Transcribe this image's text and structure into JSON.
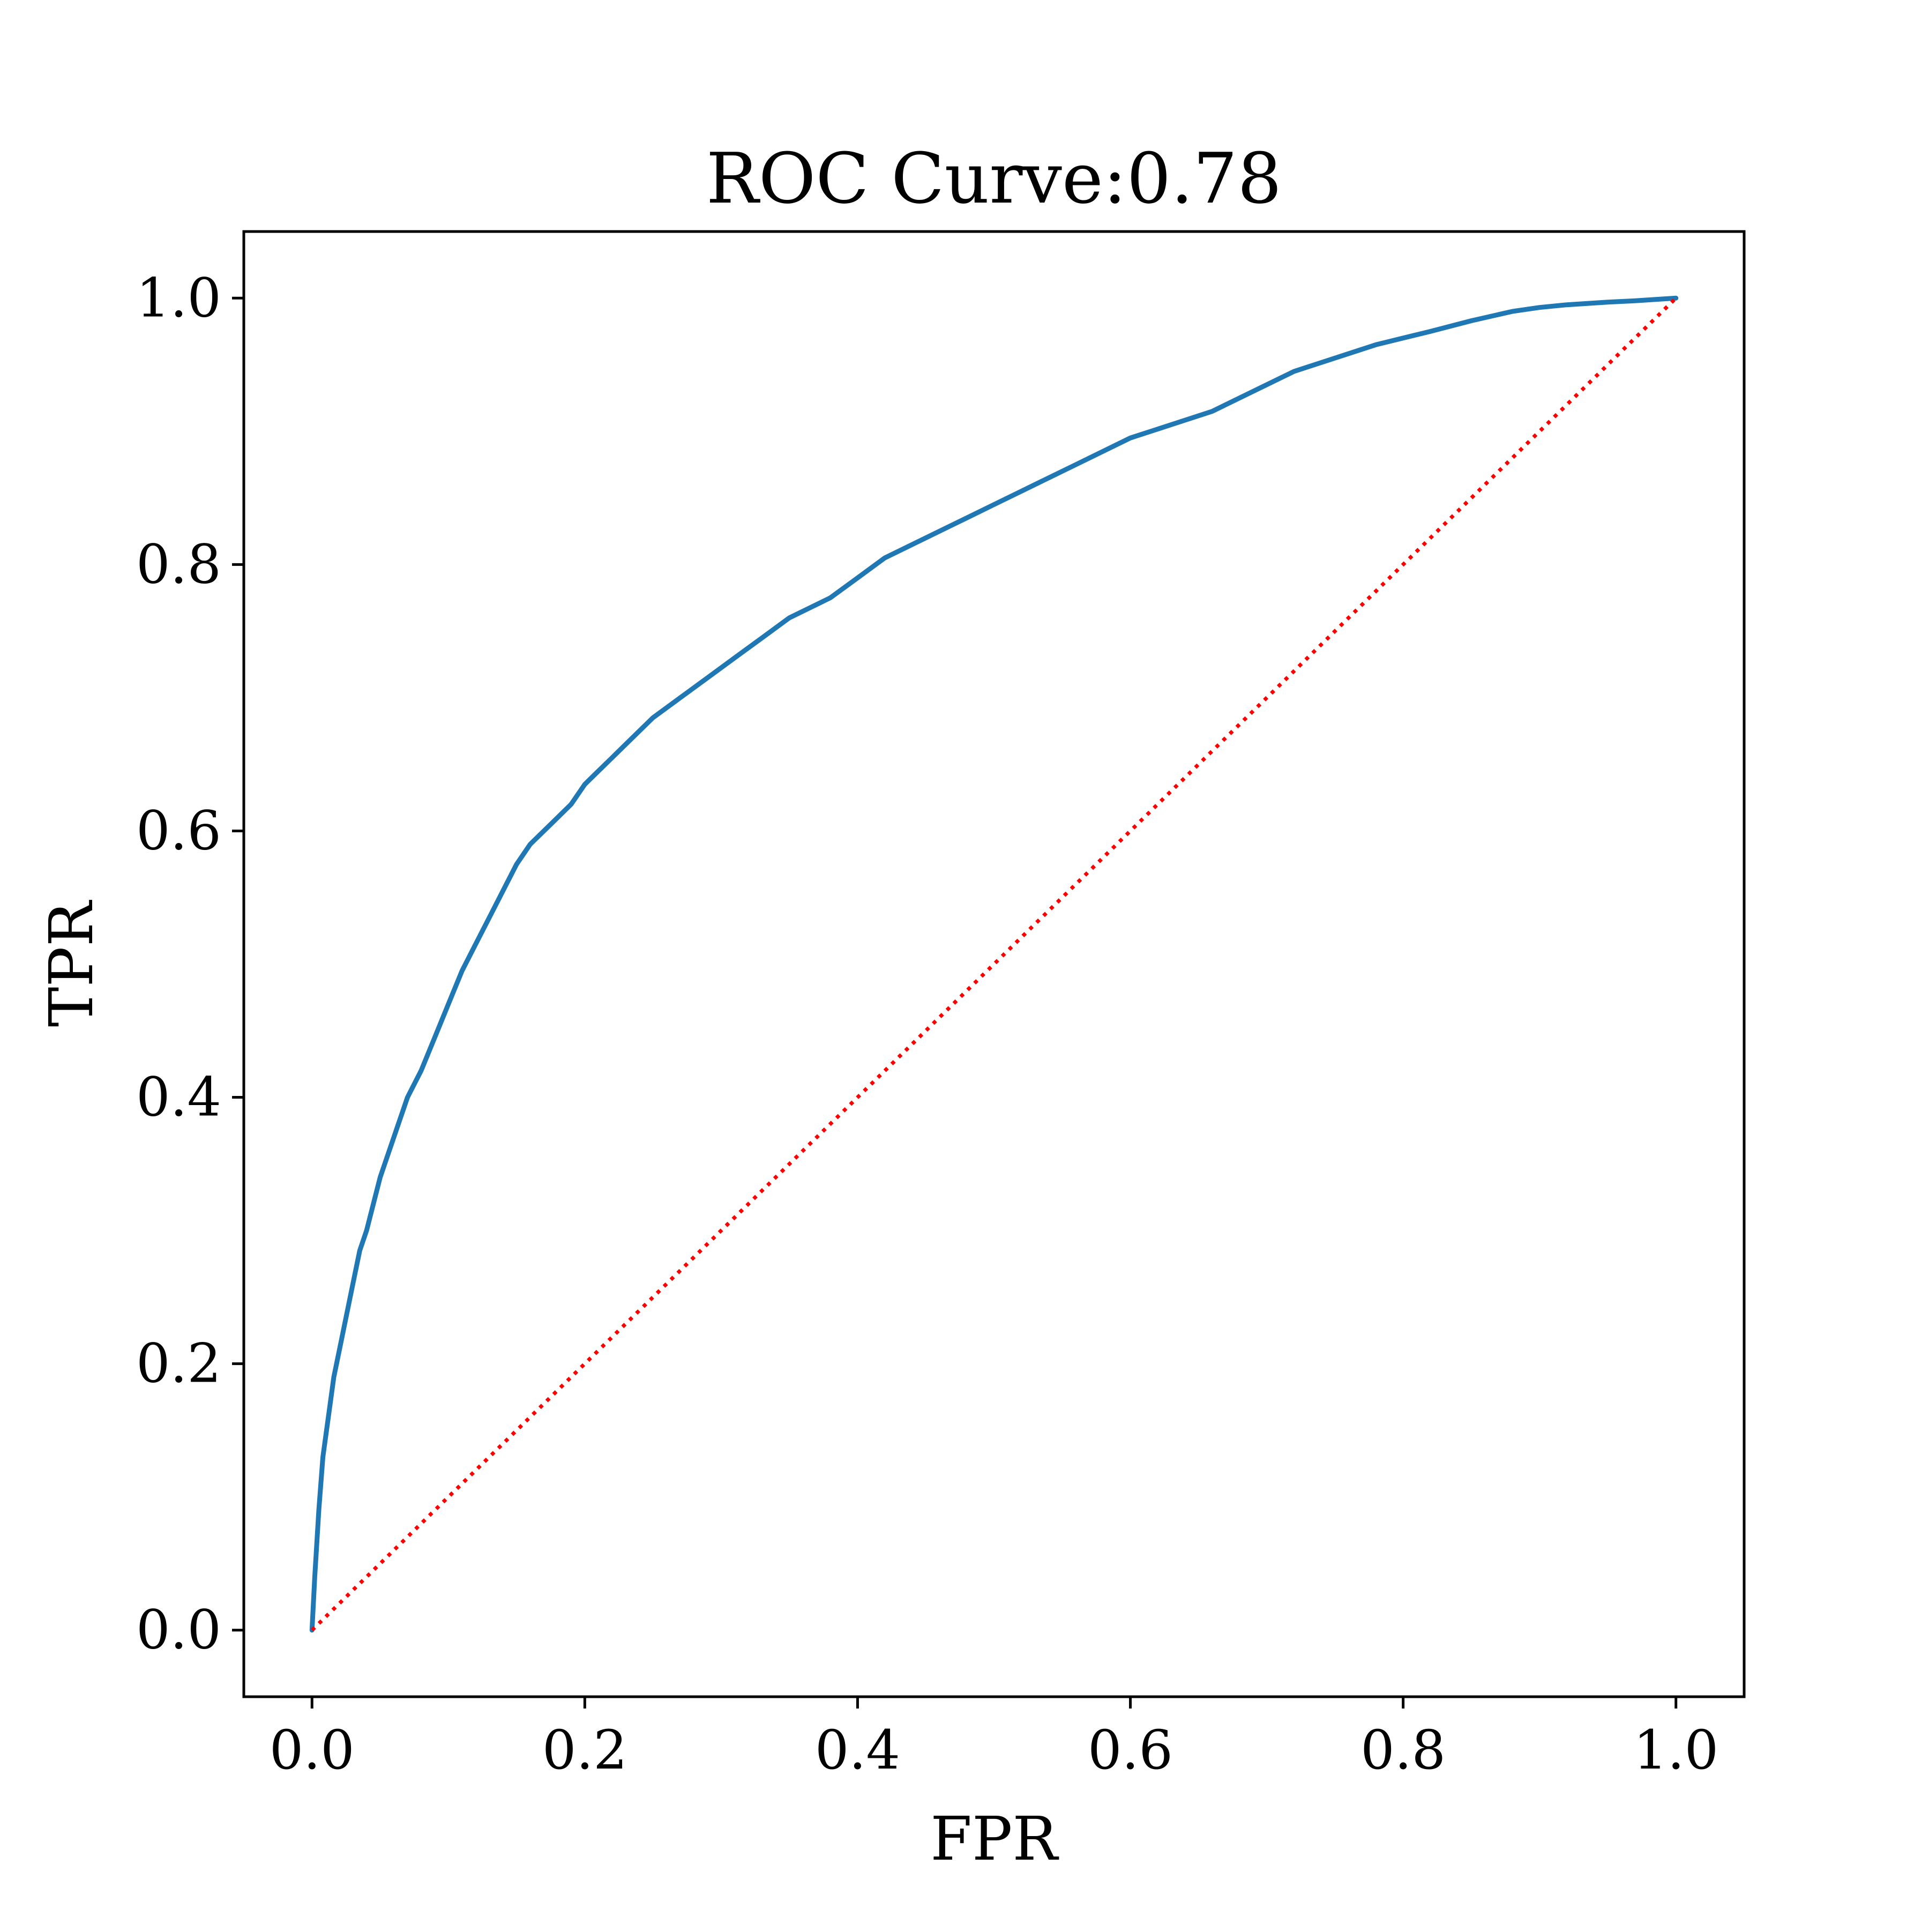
{
  "chart_data": {
    "type": "line",
    "title": "ROC Curve:0.78",
    "xlabel": "FPR",
    "ylabel": "TPR",
    "xlim": [
      -0.05,
      1.05
    ],
    "ylim": [
      -0.05,
      1.05
    ],
    "xticks": [
      "0.0",
      "0.2",
      "0.4",
      "0.6",
      "0.8",
      "1.0"
    ],
    "yticks": [
      "0.0",
      "0.2",
      "0.4",
      "0.6",
      "0.8",
      "1.0"
    ],
    "grid": false,
    "legend": "none",
    "series": [
      {
        "style": "solid",
        "color": "#1f77b4",
        "x": [
          0.0,
          0.002,
          0.005,
          0.008,
          0.012,
          0.016,
          0.02,
          0.025,
          0.03,
          0.035,
          0.04,
          0.045,
          0.05,
          0.06,
          0.07,
          0.08,
          0.09,
          0.1,
          0.11,
          0.12,
          0.13,
          0.14,
          0.15,
          0.16,
          0.17,
          0.18,
          0.19,
          0.2,
          0.21,
          0.22,
          0.23,
          0.25,
          0.27,
          0.29,
          0.31,
          0.33,
          0.35,
          0.38,
          0.4,
          0.42,
          0.45,
          0.48,
          0.5,
          0.53,
          0.56,
          0.6,
          0.63,
          0.66,
          0.7,
          0.72,
          0.75,
          0.78,
          0.8,
          0.82,
          0.85,
          0.88,
          0.9,
          0.92,
          0.95,
          0.97,
          1.0
        ],
        "y": [
          0.0,
          0.04,
          0.09,
          0.13,
          0.16,
          0.19,
          0.21,
          0.235,
          0.26,
          0.285,
          0.3,
          0.32,
          0.34,
          0.37,
          0.4,
          0.42,
          0.445,
          0.47,
          0.495,
          0.515,
          0.535,
          0.555,
          0.575,
          0.59,
          0.6,
          0.61,
          0.62,
          0.635,
          0.645,
          0.655,
          0.665,
          0.685,
          0.7,
          0.715,
          0.73,
          0.745,
          0.76,
          0.775,
          0.79,
          0.805,
          0.82,
          0.835,
          0.845,
          0.86,
          0.875,
          0.895,
          0.905,
          0.915,
          0.935,
          0.945,
          0.955,
          0.965,
          0.97,
          0.975,
          0.983,
          0.99,
          0.993,
          0.995,
          0.997,
          0.998,
          1.0
        ]
      },
      {
        "style": "dotted",
        "color": "#ff0000",
        "x": [
          0.0,
          1.0
        ],
        "y": [
          0.0,
          1.0
        ]
      }
    ]
  }
}
